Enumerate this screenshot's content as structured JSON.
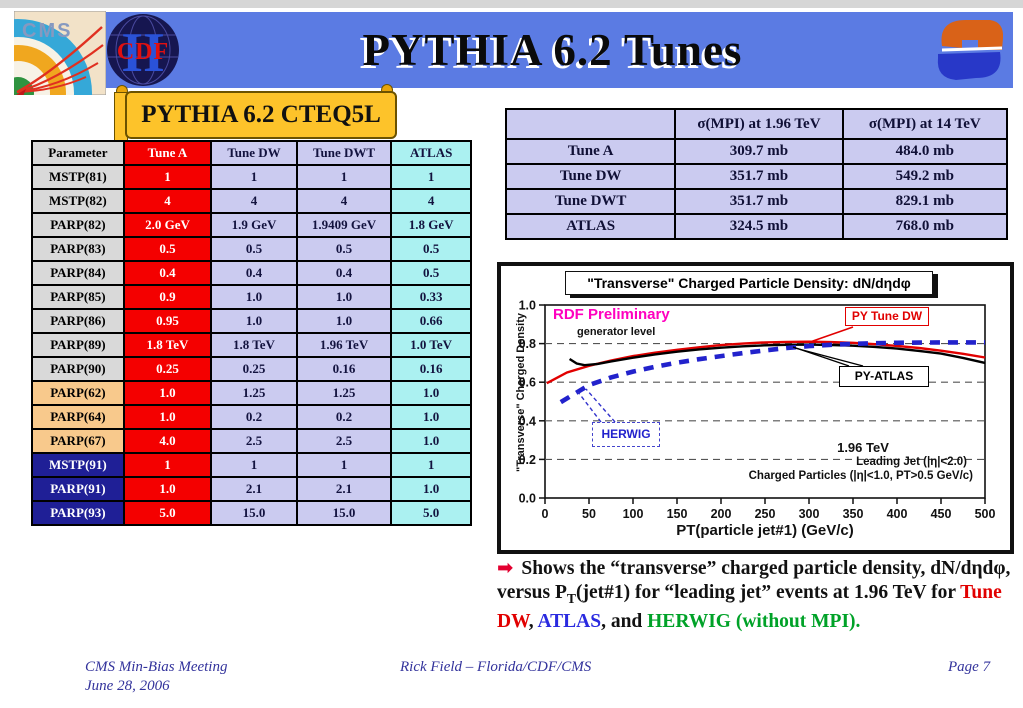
{
  "header": {
    "title": "PYTHIA 6.2 Tunes",
    "bar_color": "#5b7be3",
    "cms_logo": "CMS",
    "cdf_logo": "CDF",
    "cdf_numeral": "II"
  },
  "banner": {
    "label": "PYTHIA 6.2 CTEQ5L"
  },
  "param_table": {
    "headers": [
      "Parameter",
      "Tune A",
      "Tune DW",
      "Tune DWT",
      "ATLAS"
    ],
    "rows": [
      {
        "param": "MSTP(81)",
        "group": "gray",
        "values": [
          "1",
          "1",
          "1",
          "1"
        ]
      },
      {
        "param": "MSTP(82)",
        "group": "gray",
        "values": [
          "4",
          "4",
          "4",
          "4"
        ]
      },
      {
        "param": "PARP(82)",
        "group": "gray",
        "values": [
          "2.0 GeV",
          "1.9 GeV",
          "1.9409 GeV",
          "1.8 GeV"
        ]
      },
      {
        "param": "PARP(83)",
        "group": "gray",
        "values": [
          "0.5",
          "0.5",
          "0.5",
          "0.5"
        ]
      },
      {
        "param": "PARP(84)",
        "group": "gray",
        "values": [
          "0.4",
          "0.4",
          "0.4",
          "0.5"
        ]
      },
      {
        "param": "PARP(85)",
        "group": "gray",
        "values": [
          "0.9",
          "1.0",
          "1.0",
          "0.33"
        ]
      },
      {
        "param": "PARP(86)",
        "group": "gray",
        "values": [
          "0.95",
          "1.0",
          "1.0",
          "0.66"
        ]
      },
      {
        "param": "PARP(89)",
        "group": "gray",
        "values": [
          "1.8 TeV",
          "1.8 TeV",
          "1.96 TeV",
          "1.0 TeV"
        ]
      },
      {
        "param": "PARP(90)",
        "group": "gray",
        "values": [
          "0.25",
          "0.25",
          "0.16",
          "0.16"
        ]
      },
      {
        "param": "PARP(62)",
        "group": "orange",
        "values": [
          "1.0",
          "1.25",
          "1.25",
          "1.0"
        ]
      },
      {
        "param": "PARP(64)",
        "group": "orange",
        "values": [
          "1.0",
          "0.2",
          "0.2",
          "1.0"
        ]
      },
      {
        "param": "PARP(67)",
        "group": "orange",
        "values": [
          "4.0",
          "2.5",
          "2.5",
          "1.0"
        ]
      },
      {
        "param": "MSTP(91)",
        "group": "navy",
        "values": [
          "1",
          "1",
          "1",
          "1"
        ]
      },
      {
        "param": "PARP(91)",
        "group": "navy",
        "values": [
          "1.0",
          "2.1",
          "2.1",
          "1.0"
        ]
      },
      {
        "param": "PARP(93)",
        "group": "navy",
        "values": [
          "5.0",
          "15.0",
          "15.0",
          "5.0"
        ]
      }
    ]
  },
  "mpi_table": {
    "col_headers": [
      "",
      "σ(MPI) at 1.96 TeV",
      "σ(MPI) at 14 TeV"
    ],
    "rows": [
      {
        "label": "Tune A",
        "values": [
          "309.7 mb",
          "484.0 mb"
        ]
      },
      {
        "label": "Tune DW",
        "values": [
          "351.7 mb",
          "549.2 mb"
        ]
      },
      {
        "label": "Tune DWT",
        "values": [
          "351.7 mb",
          "829.1 mb"
        ]
      },
      {
        "label": "ATLAS",
        "values": [
          "324.5 mb",
          "768.0 mb"
        ]
      }
    ]
  },
  "chart_data": {
    "type": "line",
    "title": "\"Transverse\" Charged Particle Density: dN/dηdφ",
    "xlabel": "PT(particle jet#1)  (GeV/c)",
    "ylabel": "\"Transverse\" Charged Density",
    "xlim": [
      0,
      500
    ],
    "ylim": [
      0.0,
      1.0
    ],
    "xticks": [
      0,
      50,
      100,
      150,
      200,
      250,
      300,
      350,
      400,
      450,
      500
    ],
    "yticks": [
      0.0,
      0.2,
      0.4,
      0.6,
      0.8,
      1.0
    ],
    "grid": "horizontal-dashed",
    "legend_position": "callout-boxes",
    "annotations": {
      "preliminary": "RDF Preliminary",
      "preliminary_color": "#ff00bf",
      "generator": "generator level",
      "tune_dw_label": "PY Tune DW",
      "atlas_label": "PY-ATLAS",
      "herwig_label": "HERWIG",
      "energy": "1.96 TeV",
      "leading_jet": "Leading Jet (|η|<2.0)",
      "charged_particles": "Charged Particles (|η|<1.0, PT>0.5 GeV/c)"
    },
    "series": [
      {
        "name": "PY Tune DW",
        "color": "#e10000",
        "style": "solid",
        "width": 2.4,
        "points": [
          [
            2,
            0.595
          ],
          [
            25,
            0.65
          ],
          [
            50,
            0.685
          ],
          [
            75,
            0.712
          ],
          [
            100,
            0.735
          ],
          [
            125,
            0.753
          ],
          [
            150,
            0.768
          ],
          [
            175,
            0.781
          ],
          [
            200,
            0.792
          ],
          [
            225,
            0.8
          ],
          [
            250,
            0.806
          ],
          [
            275,
            0.809
          ],
          [
            300,
            0.81
          ],
          [
            325,
            0.808
          ],
          [
            350,
            0.804
          ],
          [
            375,
            0.797
          ],
          [
            400,
            0.788
          ],
          [
            425,
            0.777
          ],
          [
            450,
            0.763
          ],
          [
            475,
            0.747
          ],
          [
            500,
            0.728
          ]
        ]
      },
      {
        "name": "PY-ATLAS",
        "color": "#000000",
        "style": "solid",
        "width": 2.4,
        "points": [
          [
            28,
            0.72
          ],
          [
            36,
            0.697
          ],
          [
            45,
            0.688
          ],
          [
            60,
            0.695
          ],
          [
            75,
            0.708
          ],
          [
            100,
            0.727
          ],
          [
            125,
            0.744
          ],
          [
            150,
            0.758
          ],
          [
            175,
            0.77
          ],
          [
            200,
            0.779
          ],
          [
            225,
            0.786
          ],
          [
            250,
            0.791
          ],
          [
            275,
            0.794
          ],
          [
            300,
            0.795
          ],
          [
            325,
            0.793
          ],
          [
            350,
            0.789
          ],
          [
            375,
            0.783
          ],
          [
            400,
            0.774
          ],
          [
            425,
            0.762
          ],
          [
            450,
            0.748
          ],
          [
            475,
            0.726
          ],
          [
            500,
            0.7
          ]
        ]
      },
      {
        "name": "HERWIG (without MPI)",
        "color": "#2222cc",
        "style": "dashed",
        "width": 4.6,
        "points": [
          [
            18,
            0.497
          ],
          [
            30,
            0.53
          ],
          [
            50,
            0.585
          ],
          [
            75,
            0.625
          ],
          [
            100,
            0.655
          ],
          [
            125,
            0.68
          ],
          [
            150,
            0.701
          ],
          [
            175,
            0.719
          ],
          [
            200,
            0.735
          ],
          [
            225,
            0.751
          ],
          [
            250,
            0.765
          ],
          [
            275,
            0.777
          ],
          [
            300,
            0.787
          ],
          [
            325,
            0.794
          ],
          [
            350,
            0.799
          ],
          [
            375,
            0.802
          ],
          [
            400,
            0.804
          ],
          [
            425,
            0.805
          ],
          [
            450,
            0.806
          ],
          [
            475,
            0.806
          ],
          [
            500,
            0.806
          ]
        ]
      }
    ]
  },
  "bullet": {
    "arrow": "➡",
    "text_1": "Shows the “transverse” charged particle density, dN/dηdφ, versus P",
    "sub": "T",
    "text_2": "(jet#1) for “leading jet” events at 1.96 TeV for ",
    "tune_dw": "Tune DW",
    "sep_1": ", ",
    "atlas": "ATLAS",
    "sep_2": ", and ",
    "herwig": "HERWIG (without MPI)."
  },
  "footer": {
    "meeting": "CMS Min-Bias Meeting",
    "date": "June 28, 2006",
    "author": "Rick Field – Florida/CDF/CMS",
    "page": "Page 7"
  }
}
